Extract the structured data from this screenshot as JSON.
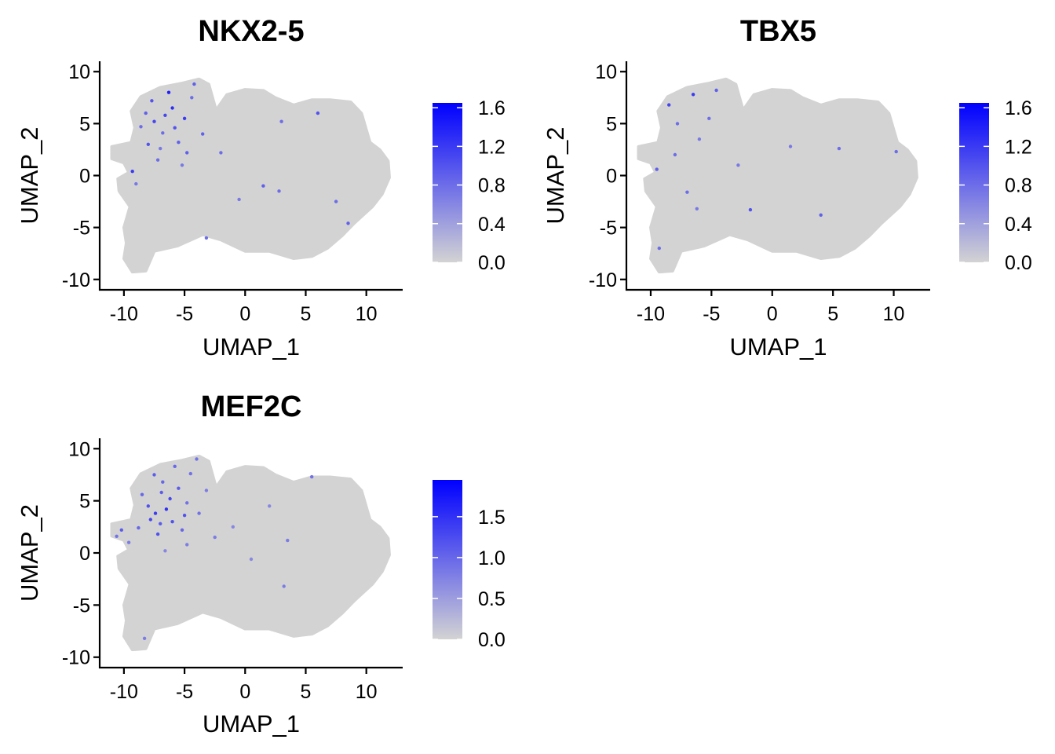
{
  "chart_data": [
    {
      "type": "scatter",
      "title": "NKX2-5",
      "xlabel": "UMAP_1",
      "ylabel": "UMAP_2",
      "xlim": [
        -12,
        13
      ],
      "ylim": [
        -11,
        11
      ],
      "x_ticks": [
        -10,
        -5,
        0,
        5,
        10
      ],
      "x_tick_labels": [
        "-10",
        "-5",
        "0",
        "5",
        "10"
      ],
      "y_ticks": [
        -10,
        -5,
        0,
        5,
        10
      ],
      "y_tick_labels": [
        "-10",
        "-5",
        "0",
        "5",
        "10"
      ],
      "grid": false,
      "color_scale": {
        "low": "#d3d3d3",
        "high": "#0000ff",
        "min": 0,
        "max": 1.65,
        "ticks": [
          0.0,
          0.4,
          0.8,
          1.2,
          1.6
        ],
        "tick_labels": [
          "0.0",
          "0.4",
          "0.8",
          "1.2",
          "1.6"
        ]
      },
      "expressing_cells": [
        {
          "x": -8.2,
          "y": 6.0,
          "v": 0.9
        },
        {
          "x": -7.5,
          "y": 5.2,
          "v": 1.1
        },
        {
          "x": -6.8,
          "y": 4.1,
          "v": 0.8
        },
        {
          "x": -6.0,
          "y": 6.5,
          "v": 1.3
        },
        {
          "x": -5.5,
          "y": 3.2,
          "v": 0.9
        },
        {
          "x": -7.0,
          "y": 2.6,
          "v": 0.7
        },
        {
          "x": -8.0,
          "y": 3.0,
          "v": 1.0
        },
        {
          "x": -5.0,
          "y": 5.5,
          "v": 1.2
        },
        {
          "x": -4.4,
          "y": 7.5,
          "v": 0.8
        },
        {
          "x": -6.3,
          "y": 8.0,
          "v": 1.4
        },
        {
          "x": -4.8,
          "y": 2.2,
          "v": 0.9
        },
        {
          "x": -7.7,
          "y": 7.2,
          "v": 1.0
        },
        {
          "x": -6.6,
          "y": 5.8,
          "v": 1.1
        },
        {
          "x": -5.8,
          "y": 4.6,
          "v": 1.0
        },
        {
          "x": -8.6,
          "y": 4.7,
          "v": 0.8
        },
        {
          "x": -9.3,
          "y": 0.4,
          "v": 1.2
        },
        {
          "x": -3.5,
          "y": 4.0,
          "v": 0.9
        },
        {
          "x": -4.2,
          "y": 8.8,
          "v": 0.9
        },
        {
          "x": -7.2,
          "y": 1.5,
          "v": 0.8
        },
        {
          "x": -5.2,
          "y": 1.0,
          "v": 0.7
        },
        {
          "x": -2.0,
          "y": 2.2,
          "v": 0.8
        },
        {
          "x": 1.5,
          "y": -1.0,
          "v": 0.9
        },
        {
          "x": 3.0,
          "y": 5.2,
          "v": 0.8
        },
        {
          "x": 6.0,
          "y": 6.0,
          "v": 1.0
        },
        {
          "x": 7.5,
          "y": -2.5,
          "v": 0.8
        },
        {
          "x": -3.2,
          "y": -6.0,
          "v": 0.8
        },
        {
          "x": 8.5,
          "y": -4.6,
          "v": 0.9
        },
        {
          "x": -0.5,
          "y": -2.3,
          "v": 0.7
        },
        {
          "x": 2.8,
          "y": -1.5,
          "v": 0.8
        },
        {
          "x": -9.0,
          "y": -0.8,
          "v": 0.7
        }
      ]
    },
    {
      "type": "scatter",
      "title": "TBX5",
      "xlabel": "UMAP_1",
      "ylabel": "UMAP_2",
      "xlim": [
        -12,
        13
      ],
      "ylim": [
        -11,
        11
      ],
      "x_ticks": [
        -10,
        -5,
        0,
        5,
        10
      ],
      "x_tick_labels": [
        "-10",
        "-5",
        "0",
        "5",
        "10"
      ],
      "y_ticks": [
        -10,
        -5,
        0,
        5,
        10
      ],
      "y_tick_labels": [
        "-10",
        "-5",
        "0",
        "5",
        "10"
      ],
      "grid": false,
      "color_scale": {
        "low": "#d3d3d3",
        "high": "#0000ff",
        "min": 0,
        "max": 1.65,
        "ticks": [
          0.0,
          0.4,
          0.8,
          1.2,
          1.6
        ],
        "tick_labels": [
          "0.0",
          "0.4",
          "0.8",
          "1.2",
          "1.6"
        ]
      },
      "expressing_cells": [
        {
          "x": -8.5,
          "y": 6.8,
          "v": 1.1
        },
        {
          "x": -7.8,
          "y": 5.0,
          "v": 0.8
        },
        {
          "x": -6.5,
          "y": 7.8,
          "v": 1.2
        },
        {
          "x": -5.2,
          "y": 5.5,
          "v": 0.8
        },
        {
          "x": -4.6,
          "y": 8.2,
          "v": 0.9
        },
        {
          "x": -6.0,
          "y": 3.5,
          "v": 0.7
        },
        {
          "x": -8.0,
          "y": 2.0,
          "v": 0.8
        },
        {
          "x": -9.5,
          "y": 0.6,
          "v": 0.9
        },
        {
          "x": -7.0,
          "y": -1.6,
          "v": 0.8
        },
        {
          "x": -6.2,
          "y": -3.2,
          "v": 0.7
        },
        {
          "x": -1.8,
          "y": -3.3,
          "v": 1.0
        },
        {
          "x": -2.8,
          "y": 1.0,
          "v": 0.7
        },
        {
          "x": 4.0,
          "y": -3.8,
          "v": 0.9
        },
        {
          "x": 10.2,
          "y": 2.3,
          "v": 0.8
        },
        {
          "x": -9.3,
          "y": -7.0,
          "v": 0.8
        },
        {
          "x": 1.5,
          "y": 2.8,
          "v": 0.7
        },
        {
          "x": 5.5,
          "y": 2.6,
          "v": 0.8
        }
      ]
    },
    {
      "type": "scatter",
      "title": "MEF2C",
      "xlabel": "UMAP_1",
      "ylabel": "UMAP_2",
      "xlim": [
        -12,
        13
      ],
      "ylim": [
        -11,
        11
      ],
      "x_ticks": [
        -10,
        -5,
        0,
        5,
        10
      ],
      "x_tick_labels": [
        "-10",
        "-5",
        "0",
        "5",
        "10"
      ],
      "y_ticks": [
        -10,
        -5,
        0,
        5,
        10
      ],
      "y_tick_labels": [
        "-10",
        "-5",
        "0",
        "5",
        "10"
      ],
      "grid": false,
      "color_scale": {
        "low": "#d3d3d3",
        "high": "#0000ff",
        "min": 0,
        "max": 1.95,
        "ticks": [
          0.0,
          0.5,
          1.0,
          1.5
        ],
        "tick_labels": [
          "0.0",
          "0.5",
          "1.0",
          "1.5"
        ]
      },
      "expressing_cells": [
        {
          "x": -8.0,
          "y": 4.5,
          "v": 1.2
        },
        {
          "x": -7.4,
          "y": 3.8,
          "v": 1.4
        },
        {
          "x": -7.0,
          "y": 2.8,
          "v": 1.1
        },
        {
          "x": -6.5,
          "y": 4.2,
          "v": 1.5
        },
        {
          "x": -6.0,
          "y": 3.0,
          "v": 1.2
        },
        {
          "x": -7.8,
          "y": 3.2,
          "v": 1.3
        },
        {
          "x": -8.5,
          "y": 5.6,
          "v": 1.0
        },
        {
          "x": -5.5,
          "y": 6.2,
          "v": 1.1
        },
        {
          "x": -6.8,
          "y": 6.8,
          "v": 1.0
        },
        {
          "x": -4.8,
          "y": 4.8,
          "v": 0.9
        },
        {
          "x": -5.2,
          "y": 2.2,
          "v": 1.0
        },
        {
          "x": -4.5,
          "y": 7.6,
          "v": 0.9
        },
        {
          "x": -7.2,
          "y": 1.8,
          "v": 1.2
        },
        {
          "x": -6.2,
          "y": 5.2,
          "v": 1.3
        },
        {
          "x": -8.8,
          "y": 2.4,
          "v": 1.0
        },
        {
          "x": -10.2,
          "y": 2.2,
          "v": 1.1
        },
        {
          "x": -10.6,
          "y": 1.6,
          "v": 0.9
        },
        {
          "x": -9.6,
          "y": 1.0,
          "v": 0.8
        },
        {
          "x": -3.8,
          "y": 3.8,
          "v": 0.9
        },
        {
          "x": -3.2,
          "y": 6.0,
          "v": 0.8
        },
        {
          "x": -4.0,
          "y": 9.0,
          "v": 0.9
        },
        {
          "x": -5.8,
          "y": 8.3,
          "v": 1.0
        },
        {
          "x": -4.8,
          "y": 0.8,
          "v": 0.8
        },
        {
          "x": -6.6,
          "y": 0.2,
          "v": 0.7
        },
        {
          "x": -2.5,
          "y": 1.5,
          "v": 0.8
        },
        {
          "x": -1.0,
          "y": 2.5,
          "v": 0.7
        },
        {
          "x": 3.5,
          "y": 1.2,
          "v": 0.8
        },
        {
          "x": 5.5,
          "y": 7.3,
          "v": 0.9
        },
        {
          "x": 3.2,
          "y": -3.2,
          "v": 0.8
        },
        {
          "x": 2.0,
          "y": 4.5,
          "v": 0.7
        },
        {
          "x": -8.3,
          "y": -8.2,
          "v": 0.8
        },
        {
          "x": -7.5,
          "y": 7.5,
          "v": 1.1
        },
        {
          "x": -5.0,
          "y": 3.6,
          "v": 1.2
        },
        {
          "x": -6.9,
          "y": 5.8,
          "v": 1.1
        },
        {
          "x": 0.5,
          "y": -0.6,
          "v": 0.7
        }
      ]
    }
  ]
}
